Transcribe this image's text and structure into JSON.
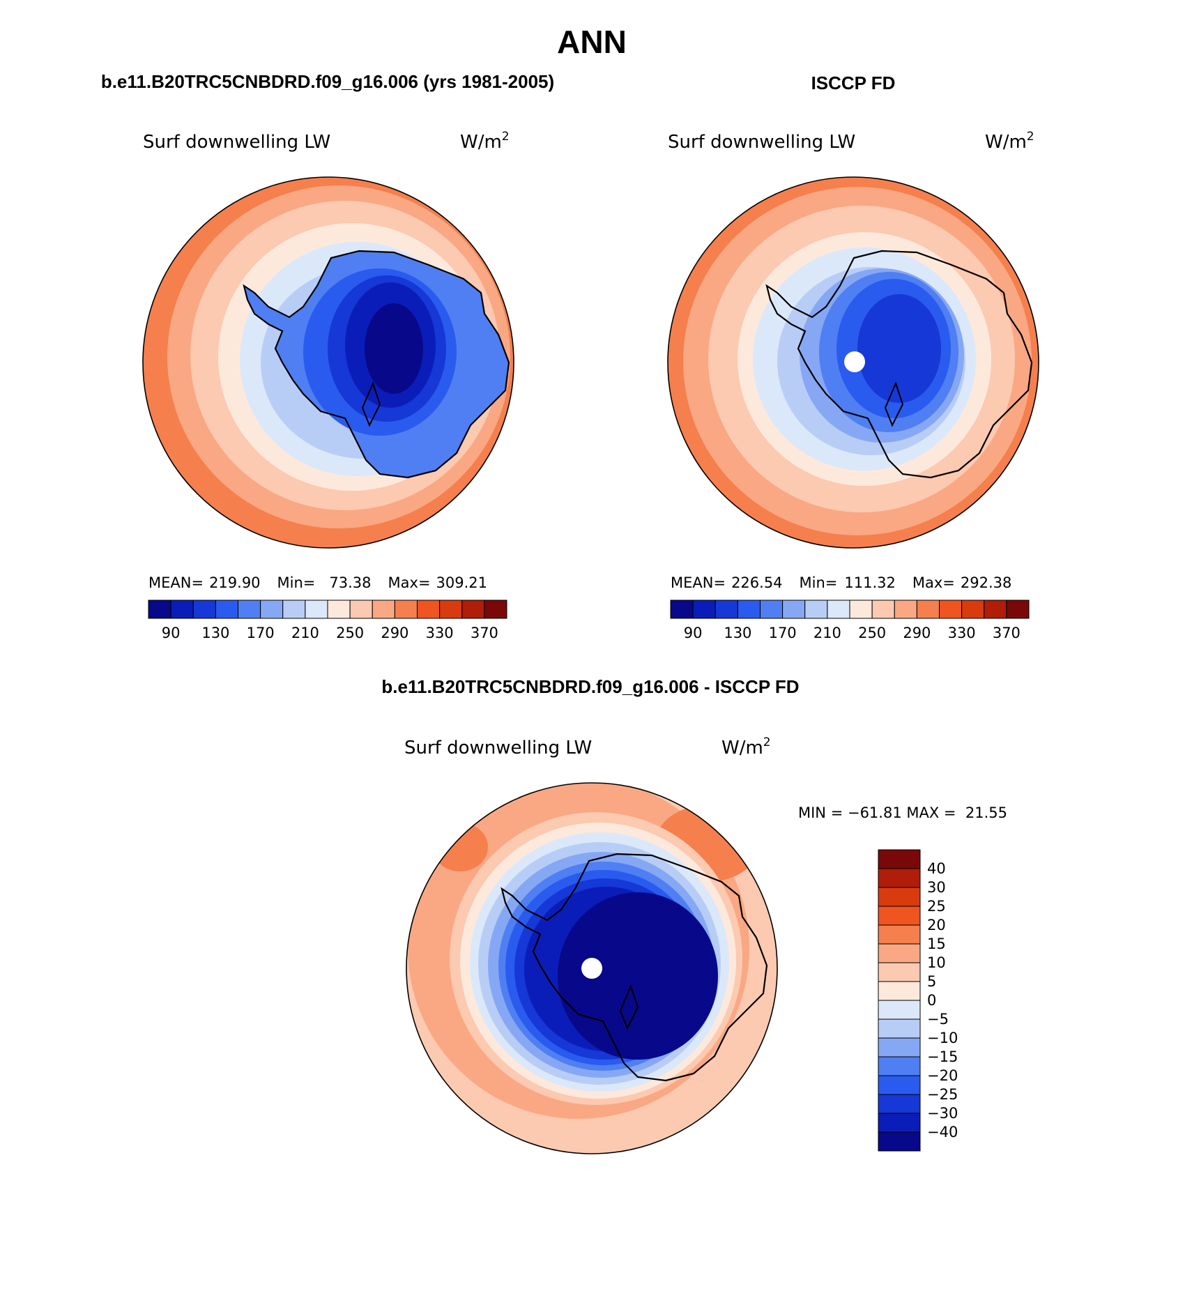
{
  "main_title": "ANN",
  "panels": [
    {
      "id": "model",
      "header": "b.e11.B20TRC5CNBDRD.f09_g16.006 (yrs 1981-2005)",
      "variable": "Surf downwelling LW",
      "units_base": "W/m",
      "units_exp": "2",
      "stats": {
        "mean_label": "MEAN=",
        "mean": "219.90",
        "min_label": "Min=",
        "min": "73.38",
        "max_label": "Max=",
        "max": "309.21"
      },
      "pole_hole": false
    },
    {
      "id": "obs",
      "header": "ISCCP FD",
      "variable": "Surf downwelling LW",
      "units_base": "W/m",
      "units_exp": "2",
      "stats": {
        "mean_label": "MEAN=",
        "mean": "226.54",
        "min_label": "Min=",
        "min": "111.32",
        "max_label": "Max=",
        "max": "292.38"
      },
      "pole_hole": true
    },
    {
      "id": "diff",
      "header": "b.e11.B20TRC5CNBDRD.f09_g16.006 - ISCCP FD",
      "variable": "Surf downwelling LW",
      "units_base": "W/m",
      "units_exp": "2",
      "stats": {
        "text": "MIN = −61.81 MAX =  21.55"
      },
      "pole_hole": true
    }
  ],
  "horizontal_colorbar": {
    "colors": [
      "#08088a",
      "#0b1db8",
      "#1538d6",
      "#2a5bef",
      "#4f7ff2",
      "#86a8f4",
      "#b8cdf6",
      "#dbe8fa",
      "#fde9dc",
      "#fcc9b1",
      "#f9a883",
      "#f57f4d",
      "#ef5421",
      "#d83c0e",
      "#b01d08",
      "#7a0808"
    ],
    "tick_labels": [
      "90",
      "130",
      "170",
      "210",
      "250",
      "290",
      "330",
      "370"
    ]
  },
  "vertical_colorbar": {
    "colors": [
      "#7a0808",
      "#b01d08",
      "#d83c0e",
      "#ef5421",
      "#f57f4d",
      "#f9a883",
      "#fcc9b1",
      "#fde9dc",
      "#dbe8fa",
      "#b8cdf6",
      "#86a8f4",
      "#4f7ff2",
      "#2a5bef",
      "#1538d6",
      "#0b1db8",
      "#08088a"
    ],
    "tick_labels": [
      "40",
      "30",
      "25",
      "20",
      "15",
      "10",
      "5",
      "0",
      "−5",
      "−10",
      "−15",
      "−20",
      "−25",
      "−30",
      "−40"
    ]
  }
}
